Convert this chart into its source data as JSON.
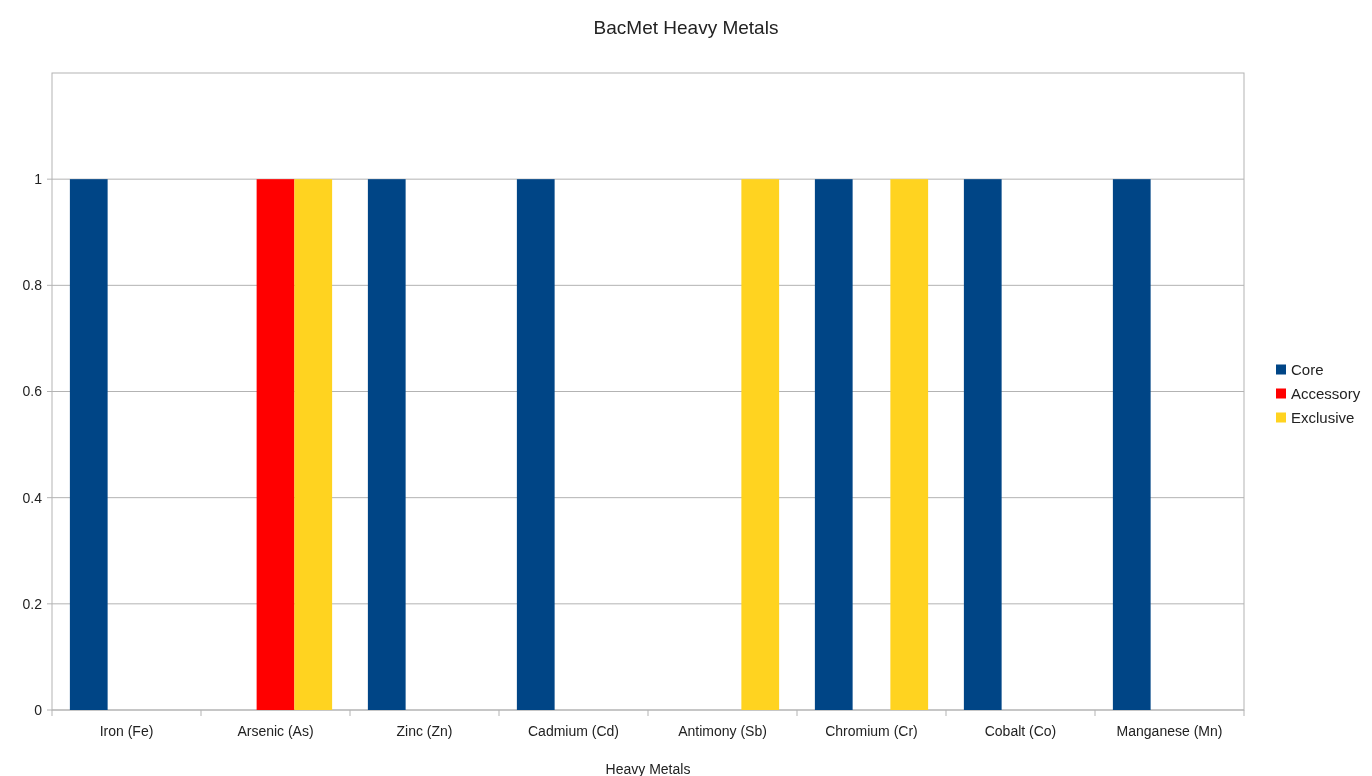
{
  "chart_data": {
    "type": "bar",
    "title": "BacMet Heavy Metals",
    "xlabel": "Heavy Metals",
    "categories": [
      "Iron (Fe)",
      "Arsenic (As)",
      "Zinc (Zn)",
      "Cadmium (Cd)",
      "Antimony (Sb)",
      "Chromium (Cr)",
      "Cobalt (Co)",
      "Manganese (Mn)"
    ],
    "series": [
      {
        "name": "Core",
        "color": "#004586",
        "values": [
          1,
          0,
          1,
          1,
          0,
          1,
          1,
          1
        ]
      },
      {
        "name": "Accessory",
        "color": "#ff0000",
        "values": [
          0,
          1,
          0,
          0,
          0,
          0,
          0,
          0
        ]
      },
      {
        "name": "Exclusive",
        "color": "#ffd320",
        "values": [
          0,
          1,
          0,
          0,
          1,
          1,
          0,
          0
        ]
      }
    ],
    "ylim": [
      0,
      1.2
    ],
    "yticks": [
      0,
      0.2,
      0.4,
      0.6,
      0.8,
      1
    ],
    "grid": "y",
    "legend": "right"
  }
}
